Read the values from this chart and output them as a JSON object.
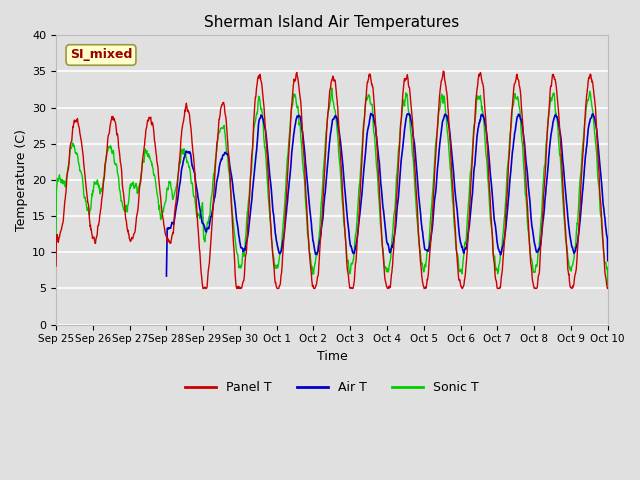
{
  "title": "Sherman Island Air Temperatures",
  "xlabel": "Time",
  "ylabel": "Temperature (C)",
  "ylim": [
    0,
    40
  ],
  "background_color": "#e0e0e0",
  "plot_bg_color": "#e0e0e0",
  "grid_color": "white",
  "line_colors": {
    "panel": "#cc0000",
    "air": "#0000cc",
    "sonic": "#00cc00"
  },
  "legend_labels": [
    "Panel T",
    "Air T",
    "Sonic T"
  ],
  "annotation_text": "SI_mixed",
  "annotation_color": "#990000",
  "annotation_bg": "#ffffcc",
  "tick_labels": [
    "Sep 25",
    "Sep 26",
    "Sep 27",
    "Sep 28",
    "Sep 29",
    "Sep 30",
    "Oct 1",
    "Oct 2",
    "Oct 3",
    "Oct 4",
    "Oct 5",
    "Oct 6",
    "Oct 7",
    "Oct 8",
    "Oct 9",
    "Oct 10"
  ],
  "tick_positions": [
    0,
    1,
    2,
    3,
    4,
    5,
    6,
    7,
    8,
    9,
    10,
    11,
    12,
    13,
    14,
    15
  ],
  "yticks": [
    0,
    5,
    10,
    15,
    20,
    25,
    30,
    35,
    40
  ]
}
